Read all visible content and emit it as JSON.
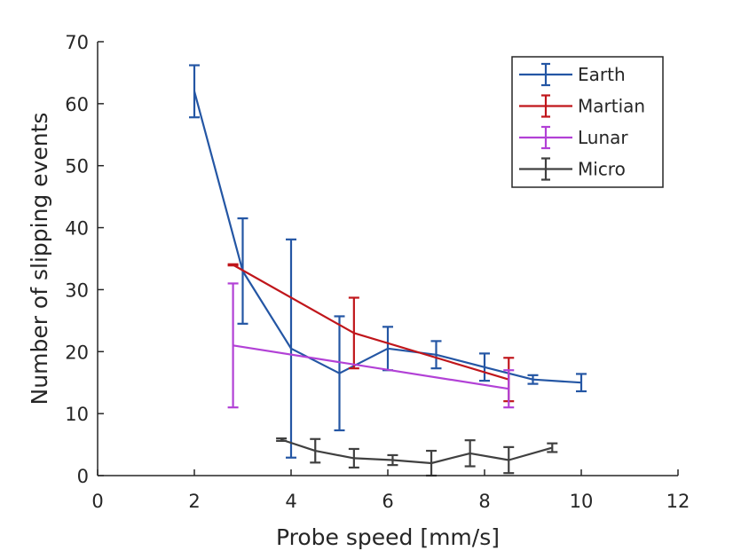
{
  "chart_data": {
    "type": "line",
    "title": "",
    "xlabel": "Probe speed [mm/s]",
    "ylabel": "Number of slipping events",
    "xlim": [
      0,
      12
    ],
    "ylim": [
      0,
      70
    ],
    "xticks": [
      0,
      2,
      4,
      6,
      8,
      10,
      12
    ],
    "yticks": [
      0,
      10,
      20,
      30,
      40,
      50,
      60,
      70
    ],
    "xtick_labels": [
      "0",
      "2",
      "4",
      "6",
      "8",
      "10",
      "12"
    ],
    "ytick_labels": [
      "0",
      "10",
      "20",
      "30",
      "40",
      "50",
      "60",
      "70"
    ],
    "grid": false,
    "legend_position": "top-right",
    "error_bars": true,
    "series": [
      {
        "name": "Earth",
        "color": "#2456A4",
        "x": [
          2,
          3,
          4,
          5,
          6,
          7,
          8,
          9,
          10
        ],
        "y": [
          62,
          33,
          20.5,
          16.5,
          20.5,
          19.5,
          17.5,
          15.5,
          15
        ],
        "err": [
          4.2,
          8.5,
          17.6,
          9.2,
          3.5,
          2.2,
          2.2,
          0.7,
          1.4
        ]
      },
      {
        "name": "Martian",
        "color": "#C0161B",
        "x": [
          2.8,
          5.3,
          8.5
        ],
        "y": [
          34,
          23,
          15.5
        ],
        "err": [
          0.1,
          5.7,
          3.5
        ]
      },
      {
        "name": "Lunar",
        "color": "#B241D6",
        "x": [
          2.8,
          8.5
        ],
        "y": [
          21,
          14
        ],
        "err": [
          10,
          3
        ]
      },
      {
        "name": "Micro",
        "color": "#404040",
        "x": [
          3.8,
          4.5,
          5.3,
          6.1,
          6.9,
          7.7,
          8.5,
          9.4
        ],
        "y": [
          5.8,
          4,
          2.8,
          2.5,
          2,
          3.6,
          2.5,
          4.5
        ],
        "err": [
          0.2,
          1.9,
          1.5,
          0.8,
          2.0,
          2.1,
          2.1,
          0.7
        ]
      }
    ]
  }
}
